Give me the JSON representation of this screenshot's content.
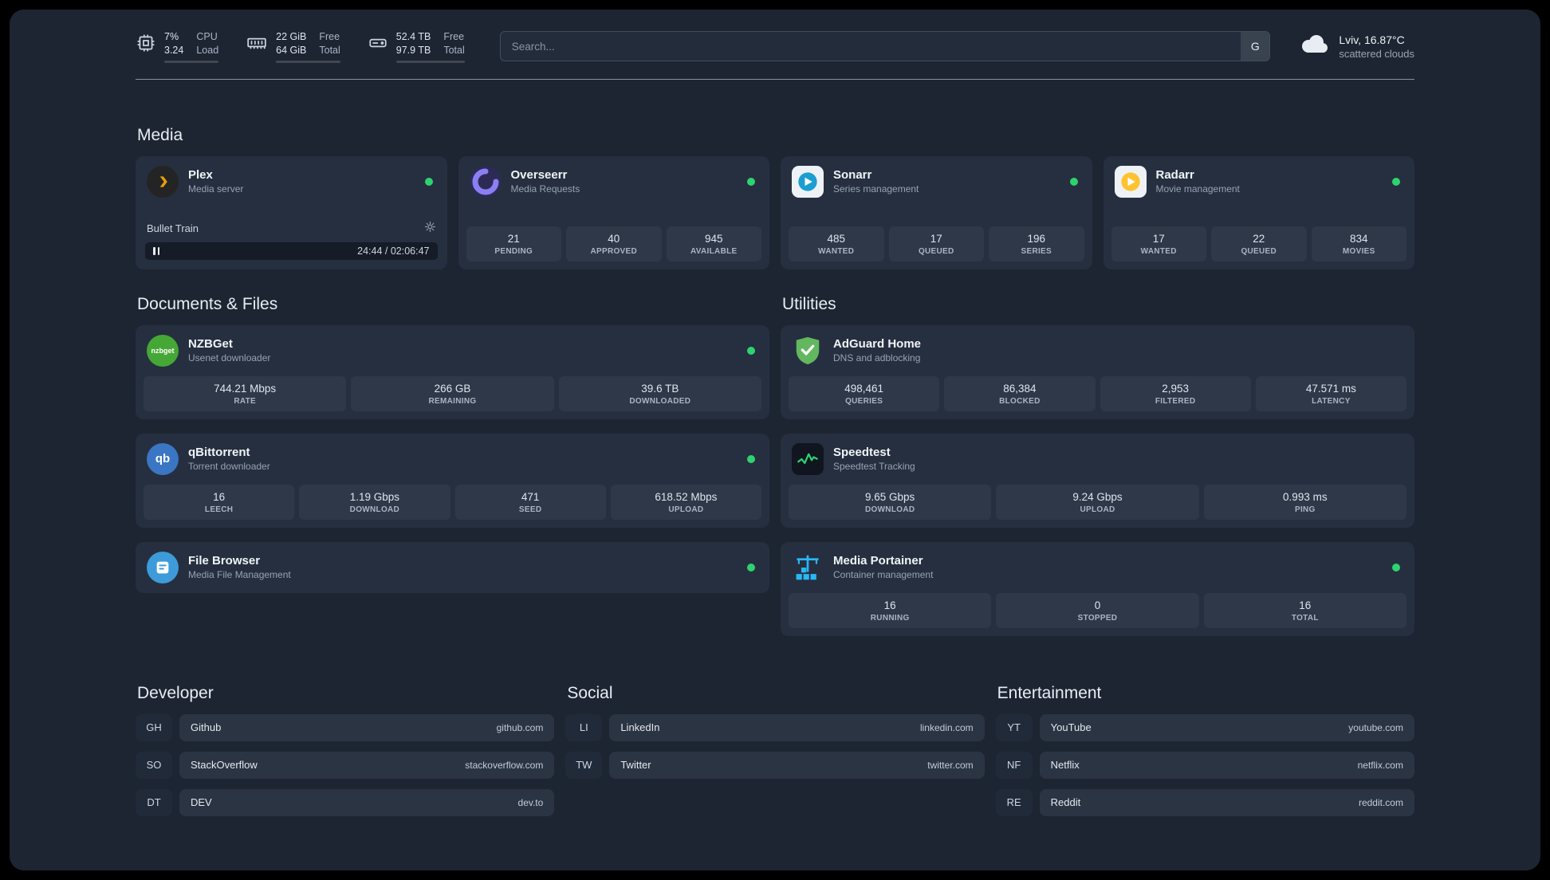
{
  "topbar": {
    "cpu": {
      "value_top": "7%",
      "value_bottom": "3.24",
      "label_top": "CPU",
      "label_bottom": "Load",
      "bar_percent": 7
    },
    "memory": {
      "value_top": "22 GiB",
      "value_bottom": "64 GiB",
      "label_top": "Free",
      "label_bottom": "Total",
      "bar_percent": 66
    },
    "disk": {
      "value_top": "52.4 TB",
      "value_bottom": "97.9 TB",
      "label_top": "Free",
      "label_bottom": "Total",
      "bar_percent": 47
    },
    "search": {
      "placeholder": "Search...",
      "provider": "G"
    },
    "weather": {
      "location": "Lviv, 16.87°C",
      "condition": "scattered clouds"
    }
  },
  "colors": {
    "status_online": "#2dd36f",
    "plex": "#e5a00d",
    "overseerr": "#8b7ff4",
    "sonarr": "#1b9ed1",
    "radarr": "#ffc230",
    "nzbget": "#45a735",
    "qbittorrent": "#3a76c4",
    "adguard": "#62b75f",
    "speedtest": "#2dd36f",
    "portainer": "#29b8f5",
    "filebrowser": "#3d9bd9"
  },
  "media": {
    "title": "Media",
    "plex": {
      "name": "Plex",
      "description": "Media server",
      "now_playing": "Bullet Train",
      "time": "24:44 / 02:06:47"
    },
    "overseerr": {
      "name": "Overseerr",
      "description": "Media Requests",
      "stats": [
        {
          "value": "21",
          "label": "PENDING"
        },
        {
          "value": "40",
          "label": "APPROVED"
        },
        {
          "value": "945",
          "label": "AVAILABLE"
        }
      ]
    },
    "sonarr": {
      "name": "Sonarr",
      "description": "Series management",
      "stats": [
        {
          "value": "485",
          "label": "WANTED"
        },
        {
          "value": "17",
          "label": "QUEUED"
        },
        {
          "value": "196",
          "label": "SERIES"
        }
      ]
    },
    "radarr": {
      "name": "Radarr",
      "description": "Movie management",
      "stats": [
        {
          "value": "17",
          "label": "WANTED"
        },
        {
          "value": "22",
          "label": "QUEUED"
        },
        {
          "value": "834",
          "label": "MOVIES"
        }
      ]
    }
  },
  "documents": {
    "title": "Documents & Files",
    "nzbget": {
      "name": "NZBGet",
      "description": "Usenet downloader",
      "icon_label": "nzbget",
      "stats": [
        {
          "value": "744.21 Mbps",
          "label": "RATE"
        },
        {
          "value": "266 GB",
          "label": "REMAINING"
        },
        {
          "value": "39.6 TB",
          "label": "DOWNLOADED"
        }
      ]
    },
    "qbittorrent": {
      "name": "qBittorrent",
      "description": "Torrent downloader",
      "icon_label": "qb",
      "stats": [
        {
          "value": "16",
          "label": "LEECH"
        },
        {
          "value": "1.19 Gbps",
          "label": "DOWNLOAD"
        },
        {
          "value": "471",
          "label": "SEED"
        },
        {
          "value": "618.52 Mbps",
          "label": "UPLOAD"
        }
      ]
    },
    "filebrowser": {
      "name": "File Browser",
      "description": "Media File Management"
    }
  },
  "utilities": {
    "title": "Utilities",
    "adguard": {
      "name": "AdGuard Home",
      "description": "DNS and adblocking",
      "stats": [
        {
          "value": "498,461",
          "label": "QUERIES"
        },
        {
          "value": "86,384",
          "label": "BLOCKED"
        },
        {
          "value": "2,953",
          "label": "FILTERED"
        },
        {
          "value": "47.571 ms",
          "label": "LATENCY"
        }
      ]
    },
    "speedtest": {
      "name": "Speedtest",
      "description": "Speedtest Tracking",
      "stats": [
        {
          "value": "9.65 Gbps",
          "label": "DOWNLOAD"
        },
        {
          "value": "9.24 Gbps",
          "label": "UPLOAD"
        },
        {
          "value": "0.993 ms",
          "label": "PING"
        }
      ]
    },
    "portainer": {
      "name": "Media Portainer",
      "description": "Container management",
      "stats": [
        {
          "value": "16",
          "label": "RUNNING"
        },
        {
          "value": "0",
          "label": "STOPPED"
        },
        {
          "value": "16",
          "label": "TOTAL"
        }
      ]
    }
  },
  "bookmarks": {
    "developer": {
      "title": "Developer",
      "items": [
        {
          "abbr": "GH",
          "name": "Github",
          "url": "github.com"
        },
        {
          "abbr": "SO",
          "name": "StackOverflow",
          "url": "stackoverflow.com"
        },
        {
          "abbr": "DT",
          "name": "DEV",
          "url": "dev.to"
        }
      ]
    },
    "social": {
      "title": "Social",
      "items": [
        {
          "abbr": "LI",
          "name": "LinkedIn",
          "url": "linkedin.com"
        },
        {
          "abbr": "TW",
          "name": "Twitter",
          "url": "twitter.com"
        }
      ]
    },
    "entertainment": {
      "title": "Entertainment",
      "items": [
        {
          "abbr": "YT",
          "name": "YouTube",
          "url": "youtube.com"
        },
        {
          "abbr": "NF",
          "name": "Netflix",
          "url": "netflix.com"
        },
        {
          "abbr": "RE",
          "name": "Reddit",
          "url": "reddit.com"
        }
      ]
    }
  }
}
